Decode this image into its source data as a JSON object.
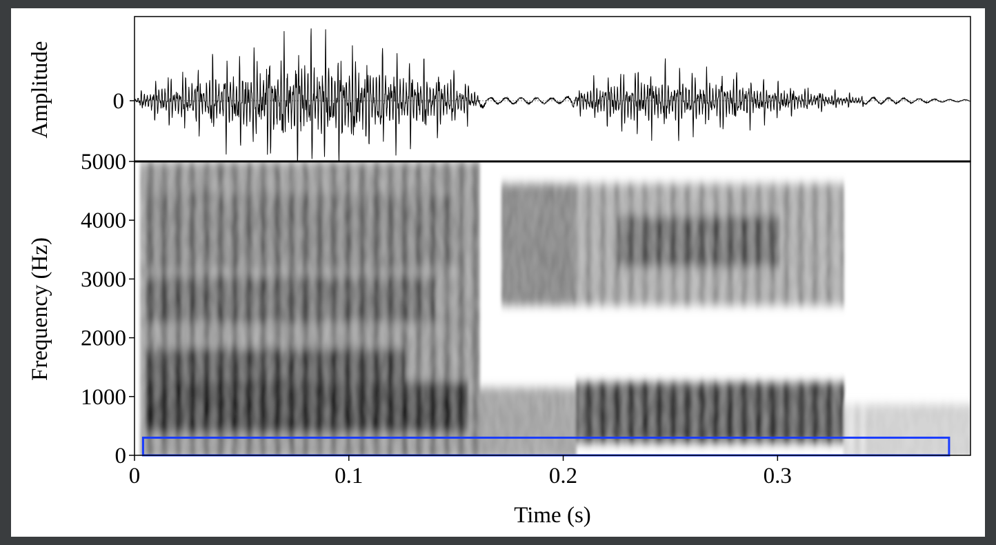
{
  "colors": {
    "background": "#3a3d3f",
    "plot_background": "#ffffff",
    "ink": "#000000",
    "highlight_box": "#1a3cff"
  },
  "chart_data": [
    {
      "type": "line",
      "ylabel": "Amplitude",
      "xlim": [
        0,
        0.39
      ],
      "yticks": [
        "0"
      ],
      "series": [
        {
          "description_values_relative": true,
          "envelope": [
            {
              "x": 0.0,
              "amp": 0.05
            },
            {
              "x": 0.01,
              "amp": 0.35
            },
            {
              "x": 0.03,
              "amp": 0.55
            },
            {
              "x": 0.05,
              "amp": 0.75
            },
            {
              "x": 0.065,
              "amp": 0.95
            },
            {
              "x": 0.08,
              "amp": 1.0
            },
            {
              "x": 0.1,
              "amp": 0.9
            },
            {
              "x": 0.12,
              "amp": 0.75
            },
            {
              "x": 0.14,
              "amp": 0.6
            },
            {
              "x": 0.155,
              "amp": 0.35
            },
            {
              "x": 0.165,
              "amp": 0.08
            },
            {
              "x": 0.2,
              "amp": 0.06
            },
            {
              "x": 0.21,
              "amp": 0.25
            },
            {
              "x": 0.225,
              "amp": 0.5
            },
            {
              "x": 0.25,
              "amp": 0.55
            },
            {
              "x": 0.28,
              "amp": 0.45
            },
            {
              "x": 0.3,
              "amp": 0.3
            },
            {
              "x": 0.32,
              "amp": 0.18
            },
            {
              "x": 0.34,
              "amp": 0.08
            },
            {
              "x": 0.39,
              "amp": 0.02
            }
          ]
        }
      ]
    },
    {
      "type": "heatmap",
      "xlabel": "Time (s)",
      "ylabel": "Frequency (Hz)",
      "xlim": [
        0,
        0.39
      ],
      "ylim": [
        0,
        5000
      ],
      "xticks": [
        0,
        0.1,
        0.2,
        0.3
      ],
      "xtick_labels": [
        "0",
        "0.1",
        "0.2",
        "0.3"
      ],
      "yticks": [
        0,
        1000,
        2000,
        3000,
        4000,
        5000
      ],
      "ytick_labels": [
        "0",
        "1000",
        "2000",
        "3000",
        "4000",
        "5000"
      ],
      "colormap": "gray_reversed",
      "regions": [
        {
          "t_start": 0.002,
          "t_end": 0.16,
          "f_low": 0,
          "f_high": 5000,
          "intensity": 0.55
        },
        {
          "t_start": 0.005,
          "t_end": 0.155,
          "f_low": 400,
          "f_high": 1300,
          "intensity": 0.95
        },
        {
          "t_start": 0.005,
          "t_end": 0.125,
          "f_low": 1300,
          "f_high": 1900,
          "intensity": 0.85
        },
        {
          "t_start": 0.005,
          "t_end": 0.14,
          "f_low": 2300,
          "f_high": 3100,
          "intensity": 0.75
        },
        {
          "t_start": 0.005,
          "t_end": 0.15,
          "f_low": 3300,
          "f_high": 4500,
          "intensity": 0.65
        },
        {
          "t_start": 0.16,
          "t_end": 0.205,
          "f_low": 0,
          "f_high": 1200,
          "intensity": 0.35
        },
        {
          "t_start": 0.17,
          "t_end": 0.33,
          "f_low": 2600,
          "f_high": 4700,
          "intensity": 0.45
        },
        {
          "t_start": 0.205,
          "t_end": 0.33,
          "f_low": 300,
          "f_high": 1250,
          "intensity": 0.85
        },
        {
          "t_start": 0.225,
          "t_end": 0.3,
          "f_low": 3300,
          "f_high": 4100,
          "intensity": 0.75
        },
        {
          "t_start": 0.33,
          "t_end": 0.39,
          "f_low": 0,
          "f_high": 900,
          "intensity": 0.18
        }
      ],
      "annotations": [
        {
          "type": "rectangle",
          "t_start": 0.004,
          "t_end": 0.38,
          "f_low": 0,
          "f_high": 300,
          "color": "#1a3cff"
        }
      ]
    }
  ]
}
